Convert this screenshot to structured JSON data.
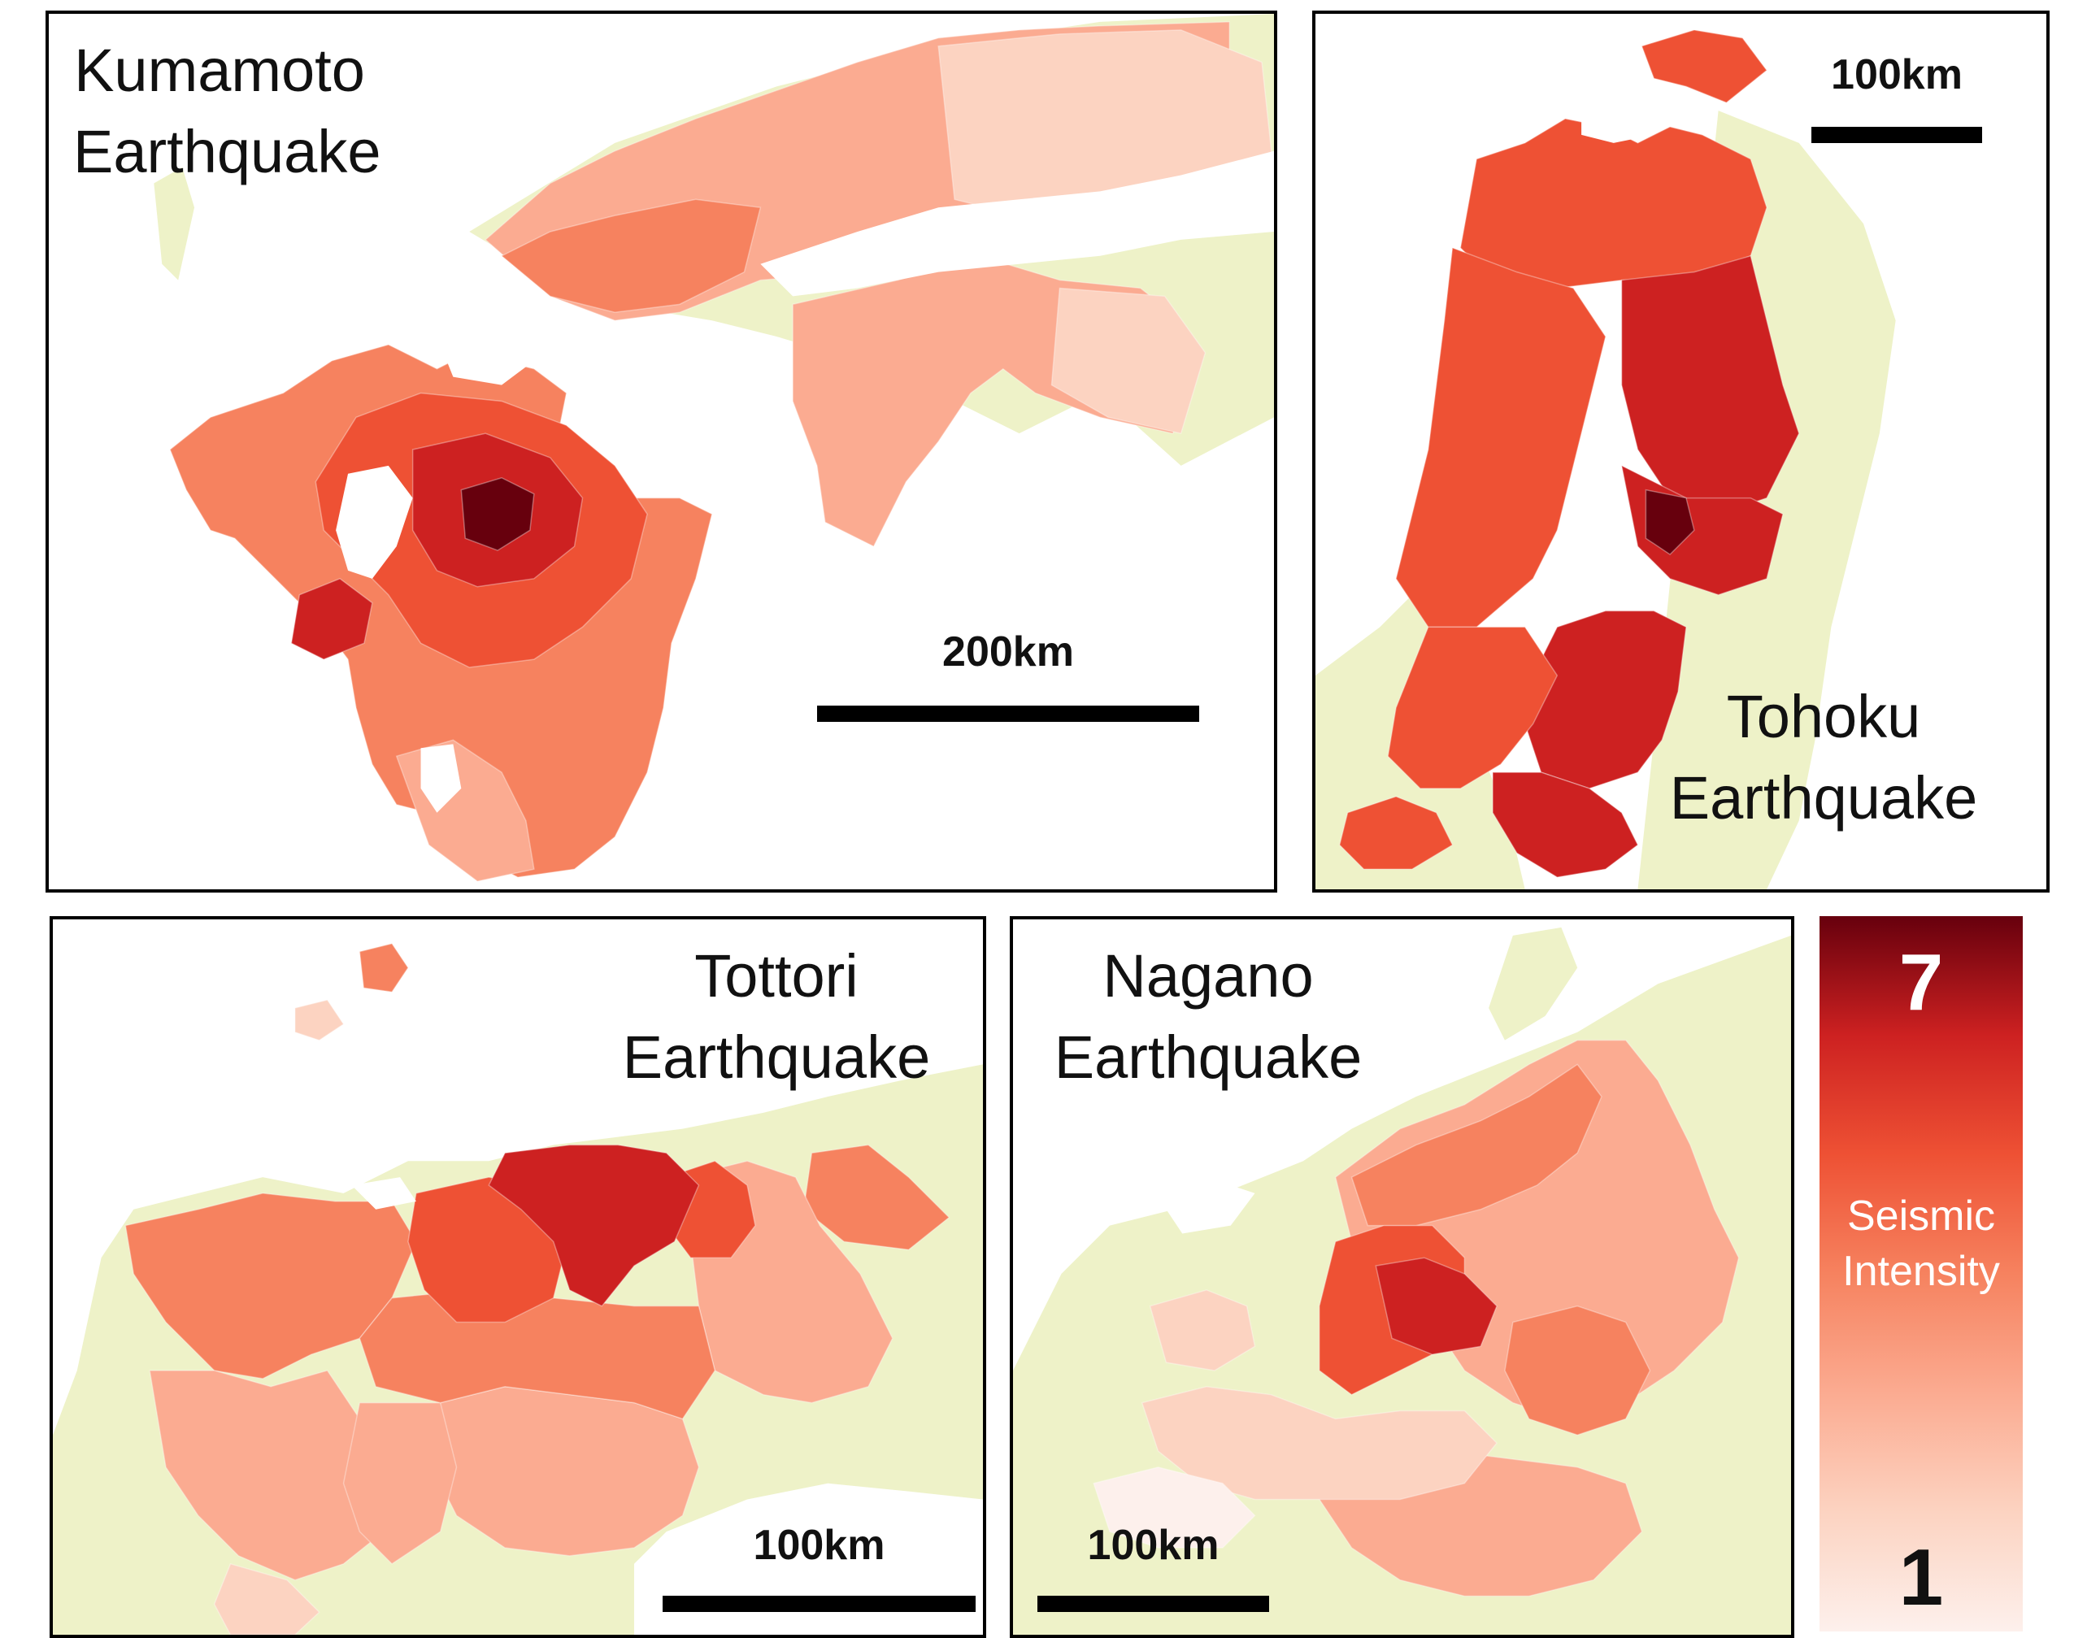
{
  "colors": {
    "land": "#eef2c8",
    "water": "#ffffff",
    "intensity_1": "#fdf0ec",
    "intensity_2": "#fcd3c1",
    "intensity_3": "#fbab91",
    "intensity_4": "#f6825f",
    "intensity_5": "#ee5134",
    "intensity_6": "#cd2121",
    "intensity_7": "#67000d"
  },
  "panels": {
    "kumamoto": {
      "title_line1": "Kumamoto",
      "title_line2": "Earthquake",
      "scale_label": "200km"
    },
    "tohoku": {
      "title_line1": "Tohoku",
      "title_line2": "Earthquake",
      "scale_label": "100km"
    },
    "tottori": {
      "title_line1": "Tottori",
      "title_line2": "Earthquake",
      "scale_label": "100km"
    },
    "nagano": {
      "title_line1": "Nagano",
      "title_line2": "Earthquake",
      "scale_label": "100km"
    }
  },
  "legend": {
    "max_label": "7",
    "min_label": "1",
    "caption_line1": "Seismic",
    "caption_line2": "Intensity"
  }
}
